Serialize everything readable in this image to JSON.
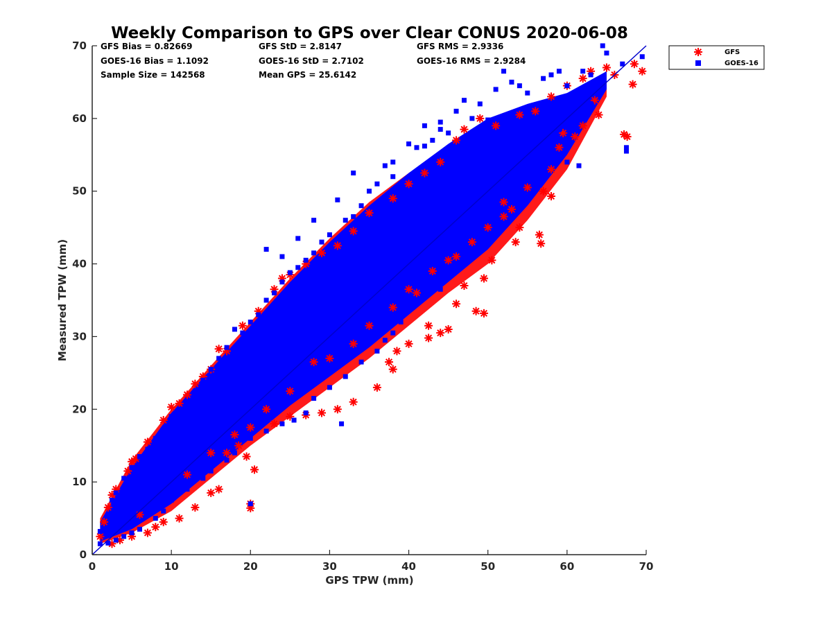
{
  "chart_data": {
    "type": "scatter",
    "title": "Weekly Comparison to GPS over Clear CONUS 2020-06-08",
    "xlabel": "GPS TPW (mm)",
    "ylabel": "Measured TPW (mm)",
    "xlim": [
      0,
      70
    ],
    "ylim": [
      0,
      70
    ],
    "xticks": [
      "0",
      "10",
      "20",
      "30",
      "40",
      "50",
      "60",
      "70"
    ],
    "yticks": [
      "0",
      "10",
      "20",
      "30",
      "40",
      "50",
      "60",
      "70"
    ],
    "grid": false,
    "legend_position": "outside-top-right",
    "reference_line": {
      "x": [
        0,
        70
      ],
      "y": [
        0,
        70
      ],
      "color": "#0000cc"
    },
    "stats": {
      "gfs_bias": "GFS Bias = 0.82669",
      "gfs_std": "GFS StD = 2.8147",
      "gfs_rms": "GFS RMS = 2.9336",
      "goes_bias": "GOES-16 Bias = 1.1092",
      "goes_std": "GOES-16 StD = 2.7102",
      "goes_rms": "GOES-16 RMS = 2.9284",
      "sample_size": "Sample Size = 142568",
      "mean_gps": "Mean GPS = 25.6142"
    },
    "series": [
      {
        "name": "GFS",
        "color": "#ff0000",
        "marker": "asterisk",
        "points": [
          [
            1.0,
            2.5
          ],
          [
            1.5,
            4.5
          ],
          [
            2,
            6.5
          ],
          [
            2.5,
            8.2
          ],
          [
            3,
            9.0
          ],
          [
            4.5,
            11.5
          ],
          [
            5,
            12.8
          ],
          [
            5.5,
            13.2
          ],
          [
            7,
            15.5
          ],
          [
            9,
            18.5
          ],
          [
            10,
            20.3
          ],
          [
            11,
            20.8
          ],
          [
            12,
            22.0
          ],
          [
            13,
            23.5
          ],
          [
            14,
            24.5
          ],
          [
            15,
            25.5
          ],
          [
            16,
            28.3
          ],
          [
            17,
            28.0
          ],
          [
            19,
            31.5
          ],
          [
            21,
            33.5
          ],
          [
            23,
            36.5
          ],
          [
            24,
            38.0
          ],
          [
            25,
            38.5
          ],
          [
            27,
            40.0
          ],
          [
            29,
            41.5
          ],
          [
            31,
            42.5
          ],
          [
            33,
            44.5
          ],
          [
            35,
            47.0
          ],
          [
            38,
            49.0
          ],
          [
            40,
            51.0
          ],
          [
            42,
            52.5
          ],
          [
            44,
            54.0
          ],
          [
            46,
            57.0
          ],
          [
            47,
            58.5
          ],
          [
            49,
            60.0
          ],
          [
            51,
            59.0
          ],
          [
            54,
            60.5
          ],
          [
            56,
            61.0
          ],
          [
            58,
            63.0
          ],
          [
            60,
            64.5
          ],
          [
            62,
            65.5
          ],
          [
            63,
            66.5
          ],
          [
            65,
            67.0
          ],
          [
            66,
            66.0
          ],
          [
            68.5,
            67.5
          ],
          [
            69.5,
            66.5
          ],
          [
            68.3,
            64.7
          ],
          [
            67.2,
            57.8
          ],
          [
            67.6,
            57.5
          ],
          [
            63.5,
            62.5
          ],
          [
            64,
            60.5
          ],
          [
            62,
            59.0
          ],
          [
            61,
            57.5
          ],
          [
            59.5,
            58.0
          ],
          [
            59,
            56.0
          ],
          [
            58,
            53.0
          ],
          [
            57,
            50.0
          ],
          [
            58,
            49.3
          ],
          [
            56.5,
            44.0
          ],
          [
            56.7,
            42.8
          ],
          [
            53.5,
            43.0
          ],
          [
            54,
            45.0
          ],
          [
            53,
            47.5
          ],
          [
            52,
            48.5
          ],
          [
            50.5,
            40.5
          ],
          [
            49.5,
            38.0
          ],
          [
            48.5,
            33.5
          ],
          [
            49.5,
            33.2
          ],
          [
            47,
            37.0
          ],
          [
            46,
            34.5
          ],
          [
            45,
            31.0
          ],
          [
            44,
            30.5
          ],
          [
            42.5,
            31.5
          ],
          [
            42.5,
            29.8
          ],
          [
            40,
            29.0
          ],
          [
            38.5,
            28.0
          ],
          [
            38,
            25.5
          ],
          [
            37.5,
            26.5
          ],
          [
            36,
            23.0
          ],
          [
            33,
            21.0
          ],
          [
            31,
            20.0
          ],
          [
            29,
            19.5
          ],
          [
            27,
            19.2
          ],
          [
            25,
            19.0
          ],
          [
            23,
            18.0
          ],
          [
            20,
            17.5
          ],
          [
            18.5,
            15.0
          ],
          [
            17,
            14.0
          ],
          [
            20,
            6.4
          ],
          [
            20,
            7.0
          ],
          [
            20.5,
            11.7
          ],
          [
            19.5,
            13.5
          ],
          [
            16,
            9.0
          ],
          [
            15,
            8.5
          ],
          [
            13,
            6.5
          ],
          [
            11,
            5.0
          ],
          [
            9,
            4.5
          ],
          [
            8,
            3.8
          ],
          [
            7,
            3.0
          ],
          [
            5,
            2.5
          ],
          [
            3.5,
            2.0
          ],
          [
            2.5,
            1.5
          ],
          [
            40,
            36.5
          ],
          [
            45,
            40.5
          ],
          [
            50,
            45.0
          ],
          [
            35,
            31.5
          ],
          [
            30,
            27.0
          ],
          [
            25,
            22.5
          ],
          [
            48,
            43.0
          ],
          [
            52,
            46.5
          ],
          [
            55,
            50.5
          ],
          [
            43,
            39.0
          ],
          [
            38,
            34.0
          ],
          [
            33,
            29.0
          ],
          [
            22,
            20.0
          ],
          [
            18,
            16.5
          ],
          [
            12,
            11.0
          ],
          [
            6,
            5.5
          ],
          [
            41,
            36.0
          ],
          [
            46,
            41.0
          ],
          [
            28,
            26.5
          ],
          [
            15,
            14.0
          ]
        ]
      },
      {
        "name": "GOES-16",
        "color": "#0000ff",
        "marker": "square",
        "points": [
          [
            1,
            3.2
          ],
          [
            2,
            5.5
          ],
          [
            2.5,
            7.5
          ],
          [
            3,
            8.5
          ],
          [
            4,
            10.5
          ],
          [
            5,
            12.0
          ],
          [
            6,
            13.5
          ],
          [
            7,
            14.5
          ],
          [
            8,
            16.0
          ],
          [
            9,
            17.0
          ],
          [
            10,
            19.0
          ],
          [
            11,
            20.0
          ],
          [
            12,
            21.0
          ],
          [
            13,
            22.5
          ],
          [
            14,
            24.0
          ],
          [
            15,
            25.5
          ],
          [
            16,
            27.0
          ],
          [
            17,
            28.5
          ],
          [
            18,
            31.0
          ],
          [
            19,
            30.5
          ],
          [
            20,
            32.0
          ],
          [
            21,
            33.0
          ],
          [
            22,
            35.0
          ],
          [
            23,
            36.0
          ],
          [
            24,
            37.5
          ],
          [
            25,
            38.8
          ],
          [
            26,
            39.5
          ],
          [
            27,
            40.5
          ],
          [
            28,
            41.5
          ],
          [
            29,
            43.0
          ],
          [
            30,
            44.0
          ],
          [
            31,
            48.8
          ],
          [
            32,
            46.0
          ],
          [
            33,
            46.5
          ],
          [
            34,
            48.0
          ],
          [
            35,
            50.0
          ],
          [
            36,
            51.0
          ],
          [
            37,
            53.5
          ],
          [
            38,
            52.0
          ],
          [
            39,
            50.0
          ],
          [
            40,
            56.5
          ],
          [
            41,
            56.0
          ],
          [
            42,
            56.2
          ],
          [
            43,
            57.0
          ],
          [
            44,
            58.5
          ],
          [
            45,
            58.0
          ],
          [
            46,
            61.0
          ],
          [
            47,
            62.5
          ],
          [
            48,
            60.0
          ],
          [
            49,
            62.0
          ],
          [
            51,
            64.0
          ],
          [
            52,
            66.5
          ],
          [
            53,
            65.0
          ],
          [
            54,
            64.5
          ],
          [
            55,
            63.5
          ],
          [
            57,
            65.5
          ],
          [
            58,
            66.0
          ],
          [
            59,
            66.5
          ],
          [
            60,
            64.5
          ],
          [
            62,
            66.5
          ],
          [
            63,
            66.0
          ],
          [
            64.5,
            70.0
          ],
          [
            65,
            69.0
          ],
          [
            67,
            67.5
          ],
          [
            69.5,
            68.5
          ],
          [
            67.5,
            56.0
          ],
          [
            67.5,
            55.5
          ],
          [
            61.5,
            53.5
          ],
          [
            60,
            54.0
          ],
          [
            56,
            53.5
          ],
          [
            54.5,
            52.0
          ],
          [
            53,
            52.5
          ],
          [
            52,
            50.0
          ],
          [
            50,
            46.5
          ],
          [
            49,
            45.0
          ],
          [
            48,
            42.0
          ],
          [
            46,
            40.0
          ],
          [
            45,
            38.5
          ],
          [
            44,
            36.5
          ],
          [
            42,
            35.5
          ],
          [
            40,
            34.0
          ],
          [
            39,
            32.0
          ],
          [
            38,
            30.5
          ],
          [
            37,
            29.5
          ],
          [
            36,
            28.0
          ],
          [
            34,
            26.5
          ],
          [
            32,
            24.5
          ],
          [
            30,
            23.0
          ],
          [
            28,
            21.5
          ],
          [
            27,
            19.5
          ],
          [
            25.5,
            18.5
          ],
          [
            24,
            18.0
          ],
          [
            22,
            17.0
          ],
          [
            20,
            16.0
          ],
          [
            18,
            14.0
          ],
          [
            17,
            13.0
          ],
          [
            15,
            11.5
          ],
          [
            14,
            10.5
          ],
          [
            12,
            9.0
          ],
          [
            10,
            7.5
          ],
          [
            9,
            6.0
          ],
          [
            8,
            5.0
          ],
          [
            6,
            3.5
          ],
          [
            5,
            3.0
          ],
          [
            4,
            2.5
          ],
          [
            3,
            2.0
          ],
          [
            2,
            1.6
          ],
          [
            1,
            1.5
          ],
          [
            31.5,
            18.0
          ],
          [
            20,
            7.0
          ],
          [
            35.5,
            44.2
          ],
          [
            28,
            46.0
          ],
          [
            22,
            42.0
          ],
          [
            26,
            43.5
          ],
          [
            24,
            41.0
          ],
          [
            33,
            52.5
          ],
          [
            38,
            54.0
          ],
          [
            42,
            59.0
          ],
          [
            44,
            59.5
          ],
          [
            50,
            59.8
          ],
          [
            48,
            57.5
          ],
          [
            56,
            59.0
          ],
          [
            57,
            60.0
          ],
          [
            61,
            60.5
          ],
          [
            63,
            62.0
          ],
          [
            59,
            58.5
          ],
          [
            55,
            55.0
          ],
          [
            52,
            55.5
          ],
          [
            46,
            52.0
          ],
          [
            40,
            47.5
          ],
          [
            35,
            42.5
          ],
          [
            30,
            37.5
          ],
          [
            25,
            32.5
          ],
          [
            20,
            27.0
          ],
          [
            15,
            21.5
          ],
          [
            10,
            15.0
          ],
          [
            5,
            8.0
          ],
          [
            44,
            48.5
          ],
          [
            38,
            44.0
          ],
          [
            32,
            38.5
          ],
          [
            26,
            32.0
          ],
          [
            21,
            26.5
          ],
          [
            16,
            20.5
          ],
          [
            11,
            14.0
          ],
          [
            6,
            8.5
          ],
          [
            50,
            53.0
          ],
          [
            46,
            48.0
          ],
          [
            41,
            44.5
          ],
          [
            36,
            40.0
          ],
          [
            31,
            35.5
          ],
          [
            27,
            30.5
          ],
          [
            23,
            26.0
          ],
          [
            19,
            22.0
          ]
        ]
      }
    ]
  }
}
